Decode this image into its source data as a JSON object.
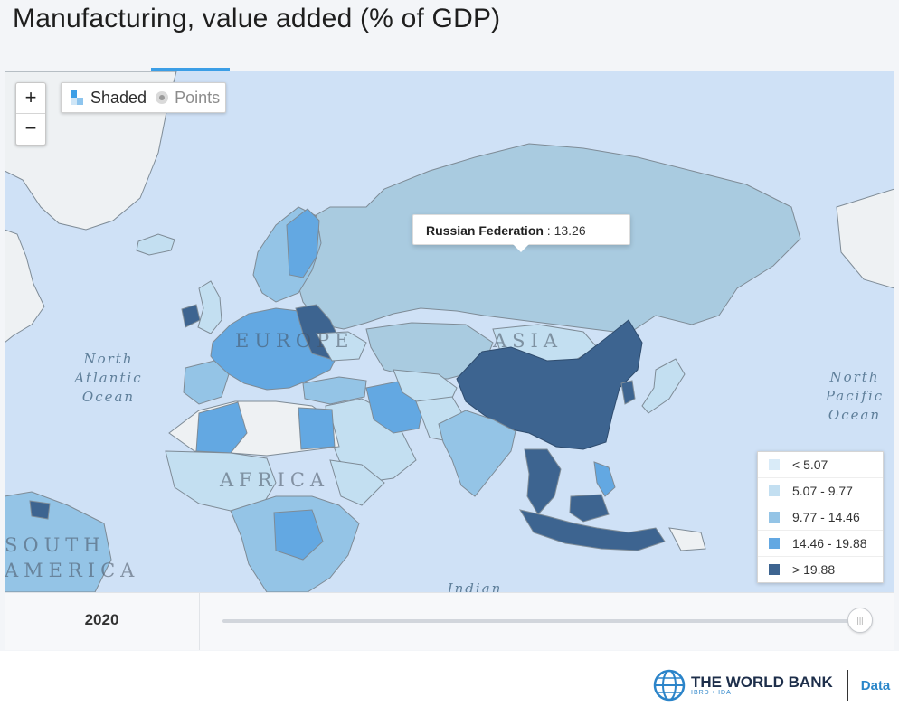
{
  "title": "Manufacturing, value added (% of GDP)",
  "map": {
    "zoom_in": "+",
    "zoom_out": "−",
    "modes": {
      "shaded": "Shaded",
      "points": "Points",
      "active": "shaded"
    },
    "tooltip": {
      "country": "Russian Federation",
      "separator": " : ",
      "value": "13.26"
    },
    "ocean_labels": {
      "north_atlantic": "North Atlantic Ocean",
      "north_pacific": "North Pacific Ocean",
      "indian": "Indian"
    },
    "region_labels": {
      "europe": "EUROPE",
      "asia": "ASIA",
      "africa": "AFRICA",
      "south_america": "SOUTH AMERICA"
    }
  },
  "legend": [
    {
      "label": "< 5.07",
      "color": "#d9ebf8"
    },
    {
      "label": "5.07 - 9.77",
      "color": "#c3dff1"
    },
    {
      "label": "9.77 - 14.46",
      "color": "#94c4e6"
    },
    {
      "label": "14.46 - 19.88",
      "color": "#63a8e2"
    },
    {
      "label": "> 19.88",
      "color": "#3d6490"
    }
  ],
  "timeline": {
    "year": "2020",
    "slider_position": 1.0
  },
  "brand": {
    "name": "THE WORLD BANK",
    "sub": "IBRD • IDA",
    "section": "Data"
  },
  "colors": {
    "ocean": "#cfe1f6",
    "no_data": "#eef1f3",
    "accent": "#3b9ee6"
  }
}
